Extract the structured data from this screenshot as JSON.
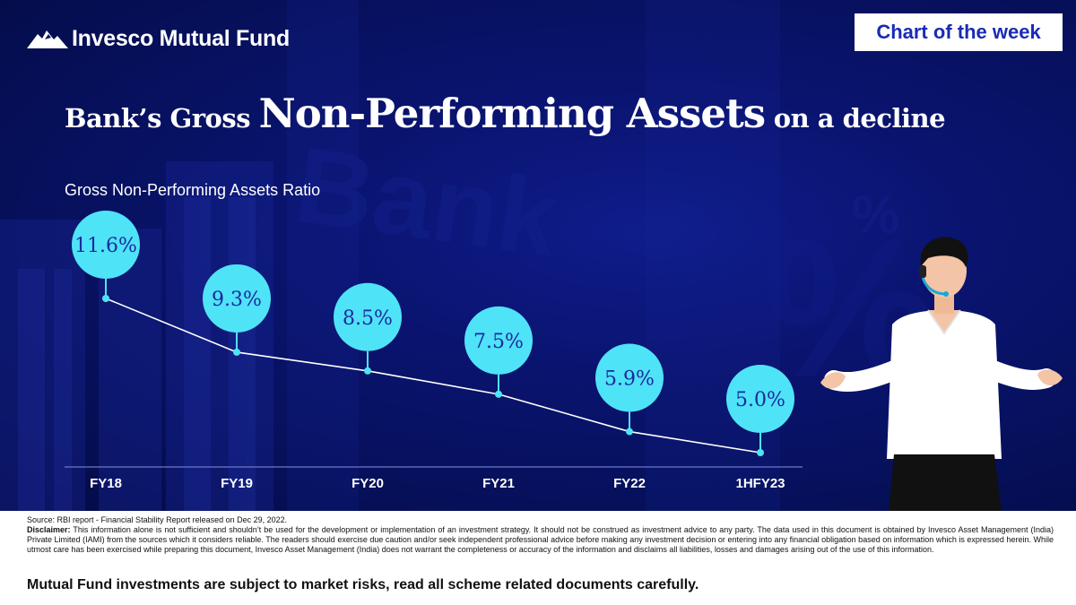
{
  "brand": {
    "name": "Invesco Mutual Fund",
    "logo_icon": "mountain-logo-icon"
  },
  "badge": {
    "label": "Chart of the week"
  },
  "headline": {
    "part1": "Bank’s Gross ",
    "part2": "Non-Performing Assets",
    "part3": " on a decline"
  },
  "colors": {
    "background": "#0a1470",
    "bubble": "#4fe3f7",
    "bubble_text": "#1b2aa0",
    "line": "#ffffff",
    "badge_text": "#1a2bb5"
  },
  "chart_data": {
    "type": "line",
    "title": "Gross Non-Performing Assets Ratio",
    "categories": [
      "FY18",
      "FY19",
      "FY20",
      "FY21",
      "FY22",
      "1HFY23"
    ],
    "values": [
      11.6,
      9.3,
      8.5,
      7.5,
      5.9,
      5.0
    ],
    "labels": [
      "11.6%",
      "9.3%",
      "8.5%",
      "7.5%",
      "5.9%",
      "5.0%"
    ],
    "xlabel": "",
    "ylabel": "",
    "grid": false,
    "legend": "none"
  },
  "footer": {
    "source_label": "Source:",
    "source_text": " RBI report - Financial Stability Report released on Dec 29, 2022.",
    "disclaimer_label": "Disclaimer:",
    "disclaimer_text": " This information alone is not sufficient and shouldn’t be used for the development or implementation of an investment strategy. It should not be construed as investment advice to any party. The data used in this document is obtained by Invesco Asset Management (India) Private Limited (IAMI) from the sources which it considers reliable. The readers should exercise due caution and/or seek independent professional advice before making any investment decision or entering into any financial obligation based on information which is expressed herein. While utmost care has been exercised while preparing this document, Invesco Asset Management (India) does not warrant the completeness or accuracy of the information and disclaims all liabilities, losses and damages arising out of the use of this information.",
    "risk_text": "Mutual Fund investments are subject to market risks, read all scheme related documents carefully."
  },
  "illustration": {
    "icon": "presenter-with-headset-illustration"
  }
}
